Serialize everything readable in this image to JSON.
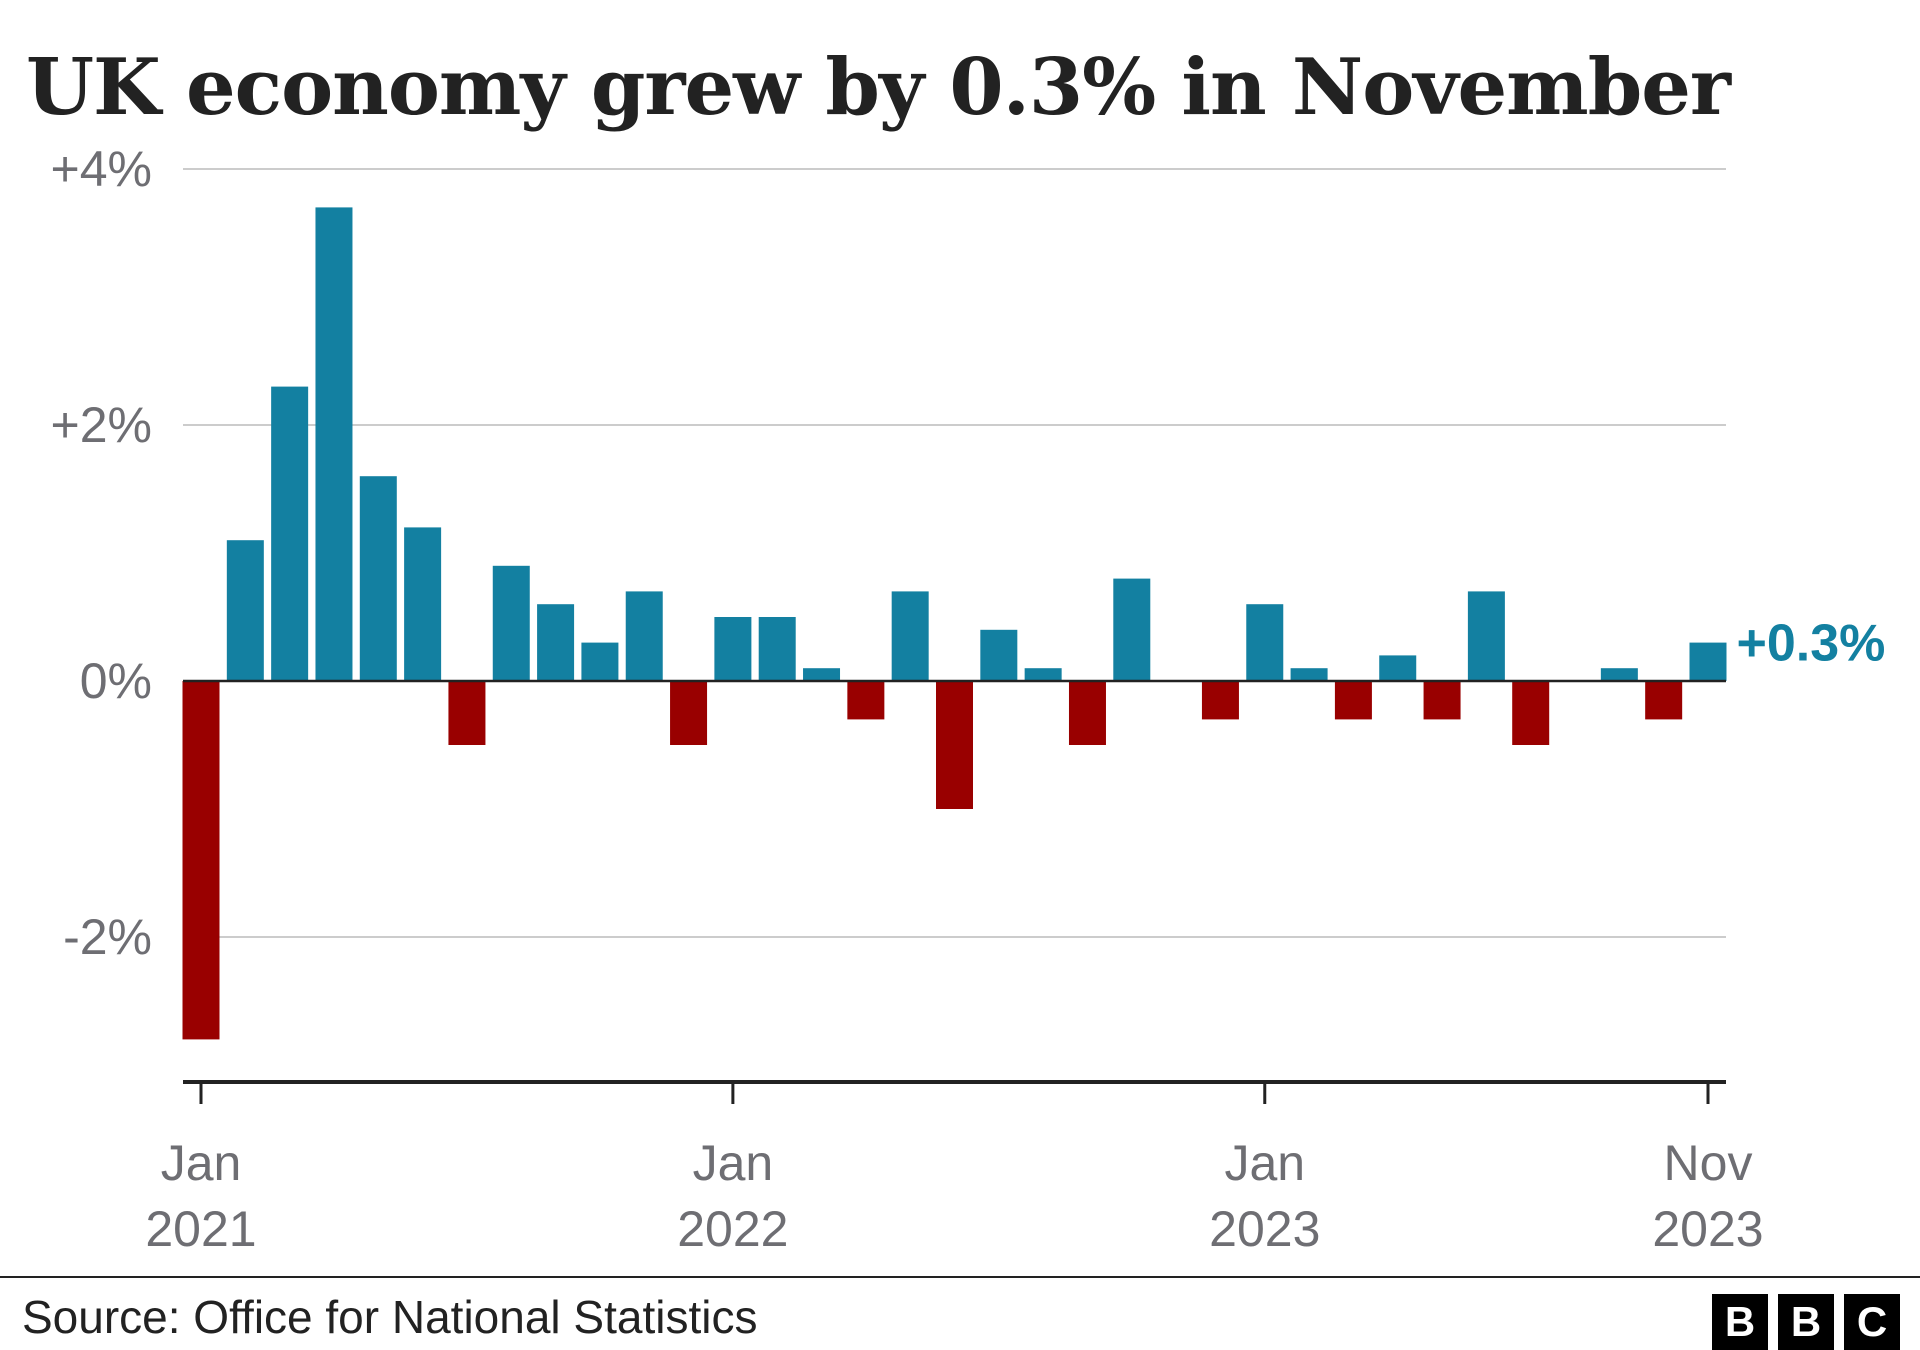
{
  "title": "UK economy grew by 0.3% in November",
  "source": "Source: Office for National Statistics",
  "logo": {
    "letters": [
      "B",
      "B",
      "C"
    ]
  },
  "colors": {
    "positive": "#1380a1",
    "negative": "#990000",
    "grid": "#cccccc",
    "axis": "#222222",
    "tick_text": "#6e6e73"
  },
  "chart_data": {
    "type": "bar",
    "title": "UK economy grew by 0.3% in November",
    "ylim": [
      -3.1,
      4
    ],
    "y_ticks": [
      {
        "value": 4,
        "label": "+4%"
      },
      {
        "value": 2,
        "label": "+2%"
      },
      {
        "value": 0,
        "label": "0%"
      },
      {
        "value": -2,
        "label": "-2%"
      }
    ],
    "x_ticks": [
      {
        "index": 0,
        "line1": "Jan",
        "line2": "2021"
      },
      {
        "index": 12,
        "line1": "Jan",
        "line2": "2022"
      },
      {
        "index": 24,
        "line1": "Jan",
        "line2": "2023"
      },
      {
        "index": 34,
        "line1": "Nov",
        "line2": "2023"
      }
    ],
    "categories": [
      "Jan 2021",
      "Feb 2021",
      "Mar 2021",
      "Apr 2021",
      "May 2021",
      "Jun 2021",
      "Jul 2021",
      "Aug 2021",
      "Sep 2021",
      "Oct 2021",
      "Nov 2021",
      "Dec 2021",
      "Jan 2022",
      "Feb 2022",
      "Mar 2022",
      "Apr 2022",
      "May 2022",
      "Jun 2022",
      "Jul 2022",
      "Aug 2022",
      "Sep 2022",
      "Oct 2022",
      "Nov 2022",
      "Dec 2022",
      "Jan 2023",
      "Feb 2023",
      "Mar 2023",
      "Apr 2023",
      "May 2023",
      "Jun 2023",
      "Jul 2023",
      "Aug 2023",
      "Sep 2023",
      "Oct 2023",
      "Nov 2023"
    ],
    "values": [
      -2.8,
      1.1,
      2.3,
      3.7,
      1.6,
      1.2,
      -0.5,
      0.9,
      0.6,
      0.3,
      0.7,
      -0.5,
      0.5,
      0.5,
      0.1,
      -0.3,
      0.7,
      -1.0,
      0.4,
      0.1,
      -0.5,
      0.8,
      0.0,
      -0.3,
      0.6,
      0.1,
      -0.3,
      0.2,
      -0.3,
      0.7,
      -0.5,
      0.0,
      0.1,
      -0.3,
      0.3
    ],
    "annotation": {
      "index": 34,
      "label": "+0.3%"
    },
    "grid": true
  }
}
